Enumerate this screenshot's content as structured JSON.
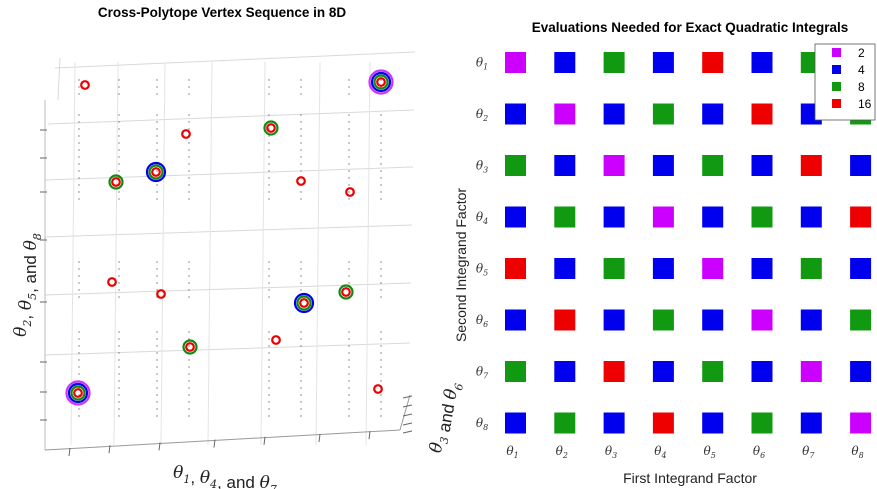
{
  "chart_data": [
    {
      "type": "scatter",
      "title": "Cross-Polytope Vertex Sequence in 8D",
      "axes_labels": {
        "x": {
          "prefix": "θ",
          "indices": [
            "1",
            "4",
            "7"
          ],
          "joiner": ", ",
          "last_joiner": ", and "
        },
        "y": {
          "prefix": "θ",
          "indices": [
            "3",
            "6"
          ],
          "joiner": " and "
        },
        "z": {
          "prefix": "θ",
          "indices": [
            "2",
            "5",
            "8"
          ],
          "joiner": ", ",
          "last_joiner": ", and "
        }
      },
      "rings": {
        "colors": {
          "2": "#cc33ff",
          "4": "#0000ee",
          "8": "#118811",
          "16": "#ee0000"
        },
        "order_outer_to_inner": [
          "2",
          "4",
          "8",
          "16"
        ]
      },
      "markers": [
        {
          "level": "2",
          "sx": 78,
          "sy": 393
        },
        {
          "level": "2",
          "sx": 381,
          "sy": 82
        },
        {
          "level": "4",
          "sx": 156,
          "sy": 172
        },
        {
          "level": "4",
          "sx": 304,
          "sy": 303
        },
        {
          "level": "8",
          "sx": 116,
          "sy": 182
        },
        {
          "level": "8",
          "sx": 271,
          "sy": 128
        },
        {
          "level": "8",
          "sx": 190,
          "sy": 347
        },
        {
          "level": "8",
          "sx": 346,
          "sy": 292
        },
        {
          "level": "16",
          "sx": 85,
          "sy": 85
        },
        {
          "level": "16",
          "sx": 186,
          "sy": 134
        },
        {
          "level": "16",
          "sx": 301,
          "sy": 181
        },
        {
          "level": "16",
          "sx": 350,
          "sy": 192
        },
        {
          "level": "16",
          "sx": 112,
          "sy": 282
        },
        {
          "level": "16",
          "sx": 161,
          "sy": 294
        },
        {
          "level": "16",
          "sx": 276,
          "sy": 340
        },
        {
          "level": "16",
          "sx": 378,
          "sy": 389
        }
      ]
    },
    {
      "type": "heatmap",
      "title": "Evaluations Needed for Exact Quadratic Integrals",
      "xlabel": "First Integrand Factor",
      "ylabel": "Second Integrand Factor",
      "x_categories": [
        "1",
        "2",
        "3",
        "4",
        "5",
        "6",
        "7",
        "8"
      ],
      "y_categories": [
        "1",
        "2",
        "3",
        "4",
        "5",
        "6",
        "7",
        "8"
      ],
      "category_prefix": "θ",
      "values": [
        [
          2,
          4,
          8,
          4,
          16,
          4,
          8,
          4
        ],
        [
          4,
          2,
          4,
          8,
          4,
          16,
          4,
          8
        ],
        [
          8,
          4,
          2,
          4,
          8,
          4,
          16,
          4
        ],
        [
          4,
          8,
          4,
          2,
          4,
          8,
          4,
          16
        ],
        [
          16,
          4,
          8,
          4,
          2,
          4,
          8,
          4
        ],
        [
          4,
          16,
          4,
          8,
          4,
          2,
          4,
          8
        ],
        [
          8,
          4,
          16,
          4,
          8,
          4,
          2,
          4
        ],
        [
          4,
          8,
          4,
          16,
          4,
          8,
          4,
          2
        ]
      ],
      "legend": {
        "placement": "top-right",
        "entries": [
          {
            "label": "2",
            "color": "#cc00ff"
          },
          {
            "label": "4",
            "color": "#0000ee"
          },
          {
            "label": "8",
            "color": "#119911"
          },
          {
            "label": "16",
            "color": "#ee0000"
          }
        ]
      }
    }
  ]
}
